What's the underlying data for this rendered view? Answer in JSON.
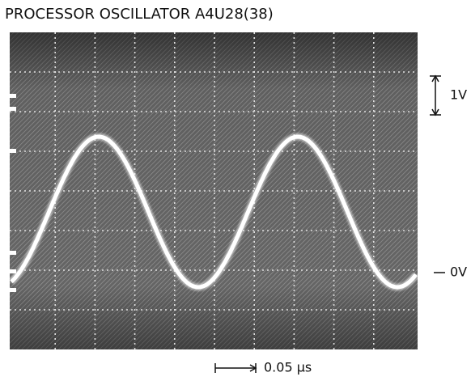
{
  "title": "PROCESSOR OSCILLATOR A4U28(38)",
  "scale": {
    "volts_per_div": "1V",
    "zero_level": "0V",
    "time_per_div": "0.05 μs"
  }
}
